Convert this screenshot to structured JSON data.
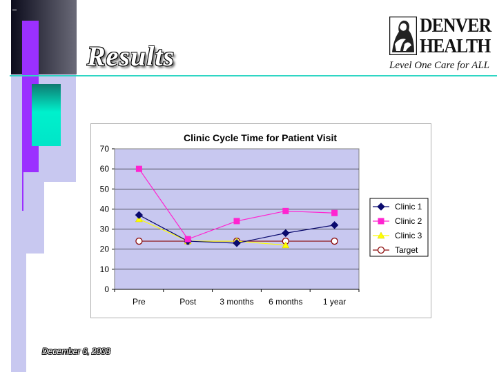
{
  "slide": {
    "title": "Results",
    "date": "December 6, 2008"
  },
  "logo": {
    "line1": "DENVER",
    "line2": "HEALTH",
    "tagline": "Level One Care for ALL"
  },
  "colors": {
    "purple": "#9b30ff",
    "teal": "#00e5c8",
    "lavender": "#c8c8f0",
    "plot_bg": "#c8c8f0",
    "clinic1": "#0a0a6e",
    "clinic2": "#ff24d0",
    "clinic3": "#ffff00",
    "target": "#8b0a0a"
  },
  "chart_data": {
    "type": "line",
    "title": "Clinic Cycle Time for Patient Visit",
    "xlabel": "",
    "ylabel": "",
    "categories": [
      "Pre",
      "Post",
      "3 months",
      "6 months",
      "1 year"
    ],
    "ylim": [
      0,
      70
    ],
    "yticks": [
      0,
      10,
      20,
      30,
      40,
      50,
      60,
      70
    ],
    "grid": true,
    "legend": "right",
    "series": [
      {
        "name": "Clinic 1",
        "values": [
          37,
          24,
          23,
          28,
          32
        ],
        "color": "#0a0a6e",
        "marker": "diamond"
      },
      {
        "name": "Clinic 2",
        "values": [
          60,
          25,
          34,
          39,
          38
        ],
        "color": "#ff24d0",
        "marker": "square"
      },
      {
        "name": "Clinic 3",
        "values": [
          35,
          24,
          24,
          22,
          null
        ],
        "color": "#ffff00",
        "marker": "triangle"
      },
      {
        "name": "Target",
        "values": [
          24,
          24,
          24,
          24,
          24
        ],
        "color": "#8b0a0a",
        "marker": "circle"
      }
    ]
  }
}
